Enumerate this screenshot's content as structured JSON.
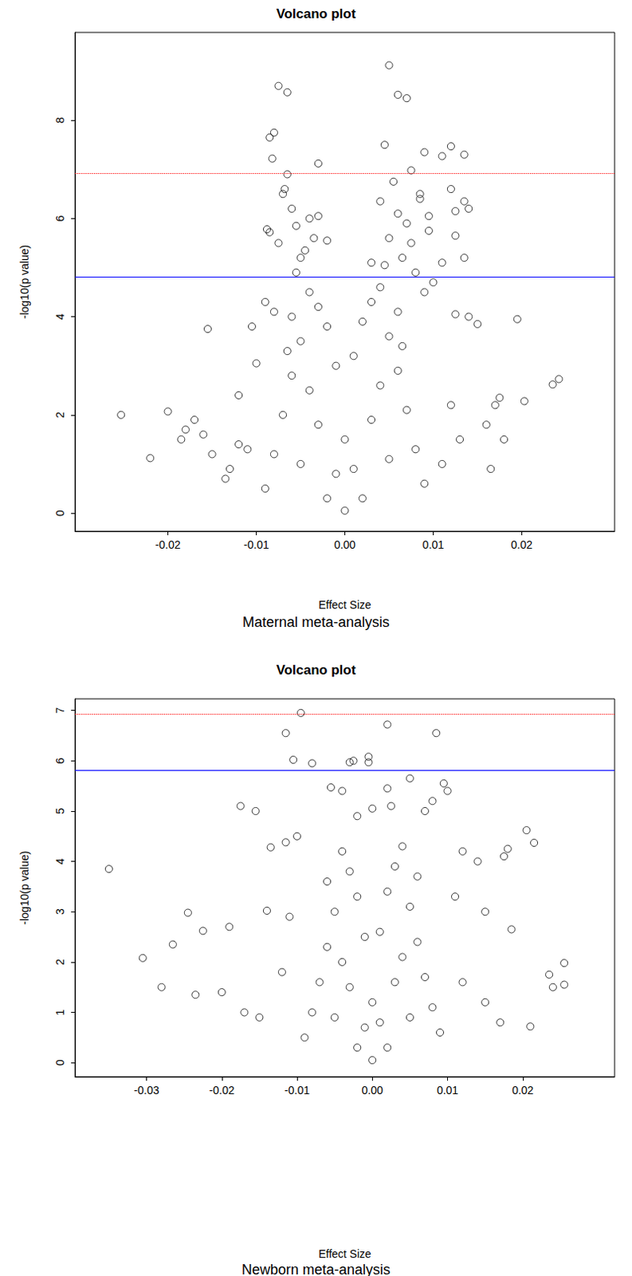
{
  "chart_data": [
    {
      "type": "scatter",
      "title": "Volcano plot",
      "x_label": "Effect Size",
      "y_label": "-log10(p value)",
      "caption": "Maternal meta-analysis",
      "marker": "circle_open",
      "color": "#000000",
      "grid": false,
      "xlim": [
        -0.0305,
        0.0305
      ],
      "xticks": [
        -0.02,
        -0.01,
        {
          "value": 0,
          "label": "0.00"
        },
        0.01,
        0.02
      ],
      "ylim": [
        -0.37,
        9.79
      ],
      "yticks": [
        0,
        2,
        4,
        6,
        8
      ],
      "hlines": [
        {
          "value": 6.92,
          "color": "#ff0000",
          "line_style": "dotted"
        },
        {
          "value": 4.81,
          "color": "#0000ff",
          "line_style": "solid"
        }
      ],
      "x": [
        -0.0075,
        -0.0065,
        -0.0085,
        -0.008,
        -0.0082,
        -0.003,
        0.005,
        0.006,
        0.007,
        0.0045,
        0.009,
        0.011,
        0.012,
        0.0135,
        0.0075,
        -0.0065,
        -0.0068,
        -0.006,
        -0.007,
        -0.0055,
        -0.004,
        -0.0088,
        -0.0085,
        -0.0075,
        -0.005,
        -0.0045,
        -0.0035,
        -0.003,
        -0.0055,
        -0.002,
        0.004,
        0.0055,
        0.006,
        0.007,
        0.0085,
        0.0095,
        0.0085,
        0.012,
        0.0125,
        0.0135,
        0.014,
        0.0125,
        0.0135,
        0.011,
        0.0095,
        0.005,
        0.0065,
        0.0075,
        0.003,
        0.0045,
        0.0195,
        0.0235,
        0.0242,
        -0.0253,
        -0.022,
        -0.02,
        -0.0155,
        0.0203,
        0.015,
        0.014,
        0.0125,
        -0.0105,
        -0.01,
        -0.0185,
        -0.018,
        -0.017,
        -0.016,
        -0.015,
        -0.0135,
        -0.012,
        0.017,
        0.0175,
        0.016,
        0.018,
        0.0165,
        -0.009,
        -0.008,
        0.01,
        0.009,
        0.008,
        -0.004,
        -0.003,
        -0.002,
        -0.001,
        0,
        0.001,
        0.002,
        0.003,
        0.004,
        -0.005,
        0.005,
        -0.006,
        0.006,
        -0.007,
        0.007,
        -0.008,
        0.008,
        -0.009,
        0.009,
        -0.002,
        0.002,
        0,
        -0.003,
        0.003,
        -0.004,
        0.004,
        -0.005,
        0.005,
        -0.001,
        0.001,
        -0.006,
        0.006,
        -0.0065,
        0.0065,
        -0.011,
        0.011,
        -0.012,
        0.012,
        -0.013,
        0.013
      ],
      "values": [
        8.7,
        8.57,
        7.65,
        7.75,
        7.22,
        7.12,
        9.12,
        8.52,
        8.45,
        7.5,
        7.35,
        7.27,
        7.47,
        7.3,
        6.98,
        6.9,
        6.6,
        6.2,
        6.5,
        5.85,
        6.0,
        5.78,
        5.72,
        5.5,
        5.2,
        5.35,
        5.6,
        6.05,
        4.9,
        5.55,
        6.35,
        6.75,
        6.1,
        5.9,
        6.5,
        6.05,
        6.4,
        6.6,
        6.15,
        6.35,
        6.2,
        5.65,
        5.2,
        5.1,
        5.75,
        5.6,
        5.2,
        5.5,
        5.1,
        5.05,
        3.95,
        2.62,
        2.73,
        2.0,
        1.12,
        2.07,
        3.75,
        2.28,
        3.85,
        4.0,
        4.05,
        3.8,
        3.05,
        1.5,
        1.7,
        1.9,
        1.6,
        1.2,
        0.7,
        1.4,
        2.2,
        2.35,
        1.8,
        1.5,
        0.9,
        4.3,
        4.1,
        4.7,
        4.5,
        4.9,
        4.5,
        4.2,
        3.8,
        3.0,
        1.5,
        3.2,
        3.9,
        4.3,
        4.6,
        3.5,
        3.6,
        2.8,
        2.9,
        2.0,
        2.1,
        1.2,
        1.3,
        0.5,
        0.6,
        0.3,
        0.3,
        0.05,
        1.8,
        1.9,
        2.5,
        2.6,
        1.0,
        1.1,
        0.8,
        0.9,
        4.0,
        4.1,
        3.3,
        3.4,
        1.3,
        1.0,
        2.4,
        2.2,
        0.9,
        1.5
      ]
    },
    {
      "type": "scatter",
      "title": "Volcano plot",
      "x_label": "Effect Size",
      "y_label": "-log10(p value)",
      "caption": "Newborn meta-analysis",
      "marker": "circle_open",
      "color": "#000000",
      "grid": false,
      "xlim": [
        -0.0395,
        0.0322
      ],
      "xticks": [
        -0.03,
        -0.02,
        -0.01,
        {
          "value": 0,
          "label": "0.00"
        },
        0.01,
        0.02
      ],
      "ylim": [
        -0.28,
        7.23
      ],
      "yticks": [
        0,
        1,
        2,
        3,
        4,
        5,
        6,
        7
      ],
      "hlines": [
        {
          "value": 6.93,
          "color": "#ff0000",
          "line_style": "dotted"
        },
        {
          "value": 5.81,
          "color": "#0000ff",
          "line_style": "solid"
        }
      ],
      "x": [
        -0.0095,
        0.002,
        0.0085,
        -0.0115,
        -0.0105,
        -0.008,
        -0.003,
        -0.0025,
        -0.0005,
        -0.0005,
        0.005,
        0.0095,
        0.01,
        -0.0055,
        -0.0175,
        -0.0155,
        -0.035,
        -0.0305,
        -0.028,
        -0.0265,
        -0.0245,
        -0.0225,
        -0.019,
        -0.0235,
        -0.02,
        -0.0135,
        -0.0115,
        -0.014,
        0.0205,
        0.0215,
        0.0175,
        0.018,
        0.0255,
        0.0235,
        0.024,
        0.0255,
        0.021,
        0.0185,
        0.015,
        0.014,
        0.012,
        -0.01,
        0.0,
        0.002,
        0.0025,
        -0.002,
        -0.004,
        0.007,
        0.008,
        -0.004,
        -0.003,
        -0.002,
        -0.001,
        0,
        0.001,
        0.002,
        0.003,
        0.004,
        -0.005,
        0.005,
        -0.006,
        0.006,
        -0.007,
        0.007,
        -0.008,
        0.008,
        -0.009,
        0.009,
        -0.002,
        0.002,
        0,
        -0.003,
        0.003,
        -0.004,
        0.004,
        -0.005,
        0.005,
        -0.001,
        0.001,
        -0.006,
        0.006,
        -0.012,
        0.012,
        -0.015,
        0.015,
        -0.017,
        0.017,
        -0.011,
        0.011
      ],
      "values": [
        6.95,
        6.72,
        6.55,
        6.55,
        6.02,
        5.95,
        5.97,
        6.0,
        6.08,
        5.97,
        5.65,
        5.55,
        5.4,
        5.47,
        5.1,
        5.0,
        3.85,
        2.08,
        1.5,
        2.35,
        2.98,
        2.62,
        2.7,
        1.35,
        1.4,
        4.28,
        4.38,
        3.02,
        4.62,
        4.37,
        4.1,
        4.25,
        1.98,
        1.75,
        1.5,
        1.55,
        0.72,
        2.65,
        3.0,
        4.0,
        4.2,
        4.5,
        5.05,
        5.45,
        5.1,
        4.9,
        5.4,
        5.0,
        5.2,
        4.2,
        3.8,
        3.3,
        2.5,
        1.2,
        2.6,
        3.4,
        3.9,
        4.3,
        3.0,
        3.1,
        2.3,
        2.4,
        1.6,
        1.7,
        1.0,
        1.1,
        0.5,
        0.6,
        0.3,
        0.3,
        0.05,
        1.5,
        1.6,
        2.0,
        2.1,
        0.9,
        0.9,
        0.7,
        0.8,
        3.6,
        3.7,
        1.8,
        1.6,
        0.9,
        1.2,
        1.0,
        0.8,
        2.9,
        3.3
      ]
    }
  ]
}
